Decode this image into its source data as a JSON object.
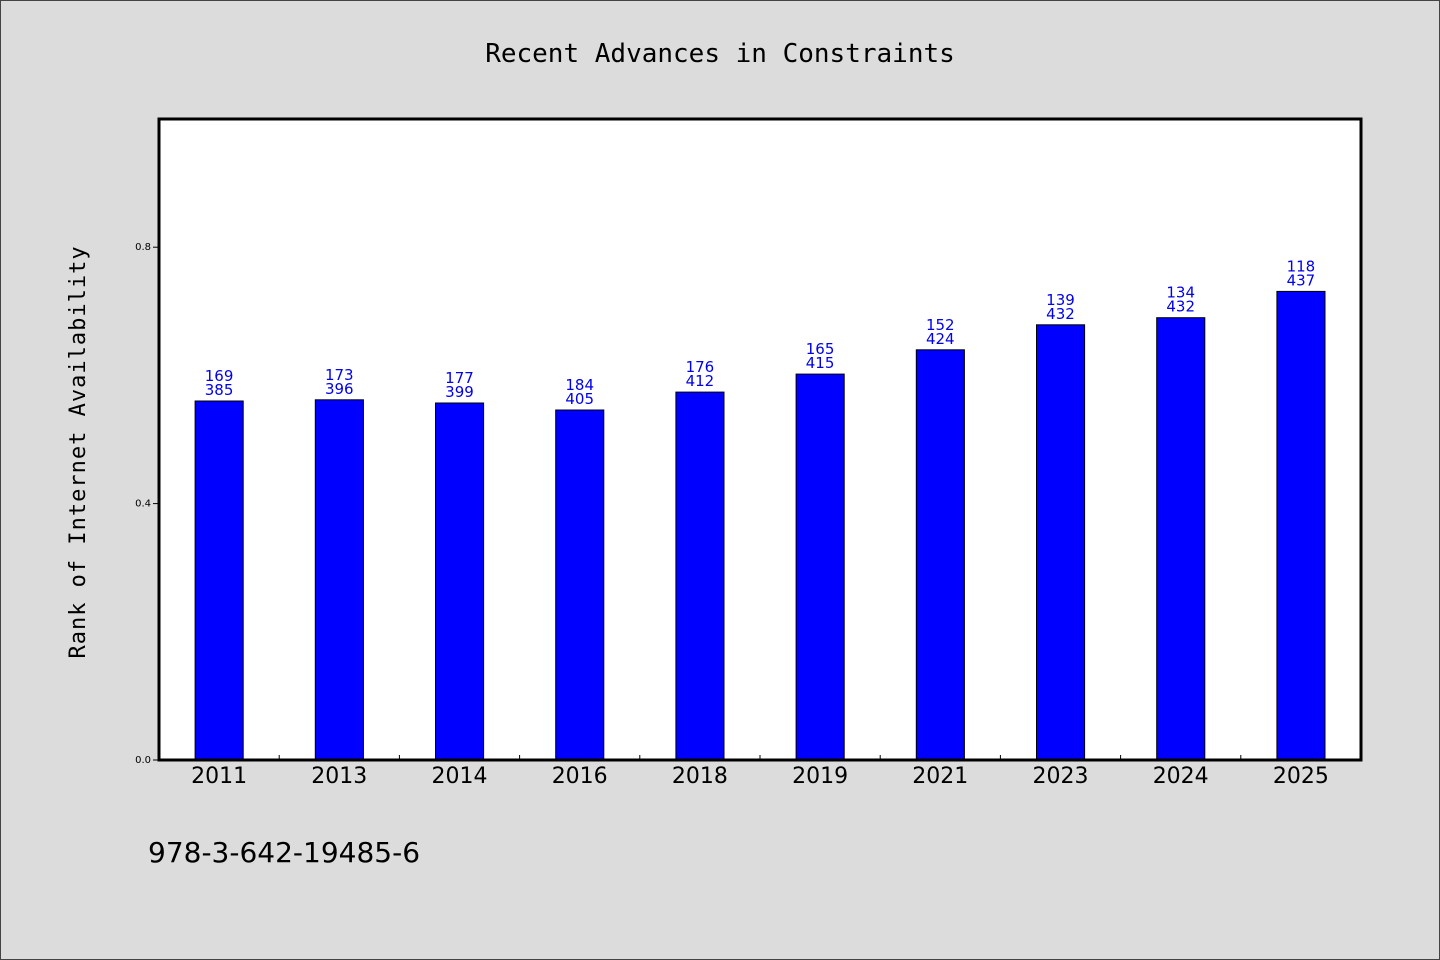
{
  "chart_data": {
    "type": "bar",
    "title": "Recent Advances in Constraints",
    "xlabel": "",
    "ylabel": "Rank of Internet Availability",
    "ylim": [
      0,
      1.0
    ],
    "yticks": [
      "0.0",
      "0.4",
      "0.8"
    ],
    "ytick_values": [
      0.0,
      0.4,
      0.8
    ],
    "grid": false,
    "bar_color": "#0000ff",
    "label_color": "#0000ee",
    "categories": [
      "2011",
      "2013",
      "2014",
      "2016",
      "2018",
      "2019",
      "2021",
      "2023",
      "2024",
      "2025"
    ],
    "values": [
      0.56,
      0.562,
      0.557,
      0.546,
      0.574,
      0.602,
      0.64,
      0.679,
      0.69,
      0.731
    ],
    "data_labels_top": [
      "169",
      "173",
      "177",
      "184",
      "176",
      "165",
      "152",
      "139",
      "134",
      "118"
    ],
    "data_labels_bottom": [
      "385",
      "396",
      "399",
      "405",
      "412",
      "415",
      "424",
      "432",
      "432",
      "437"
    ]
  },
  "footer": {
    "isbn": "978-3-642-19485-6"
  }
}
